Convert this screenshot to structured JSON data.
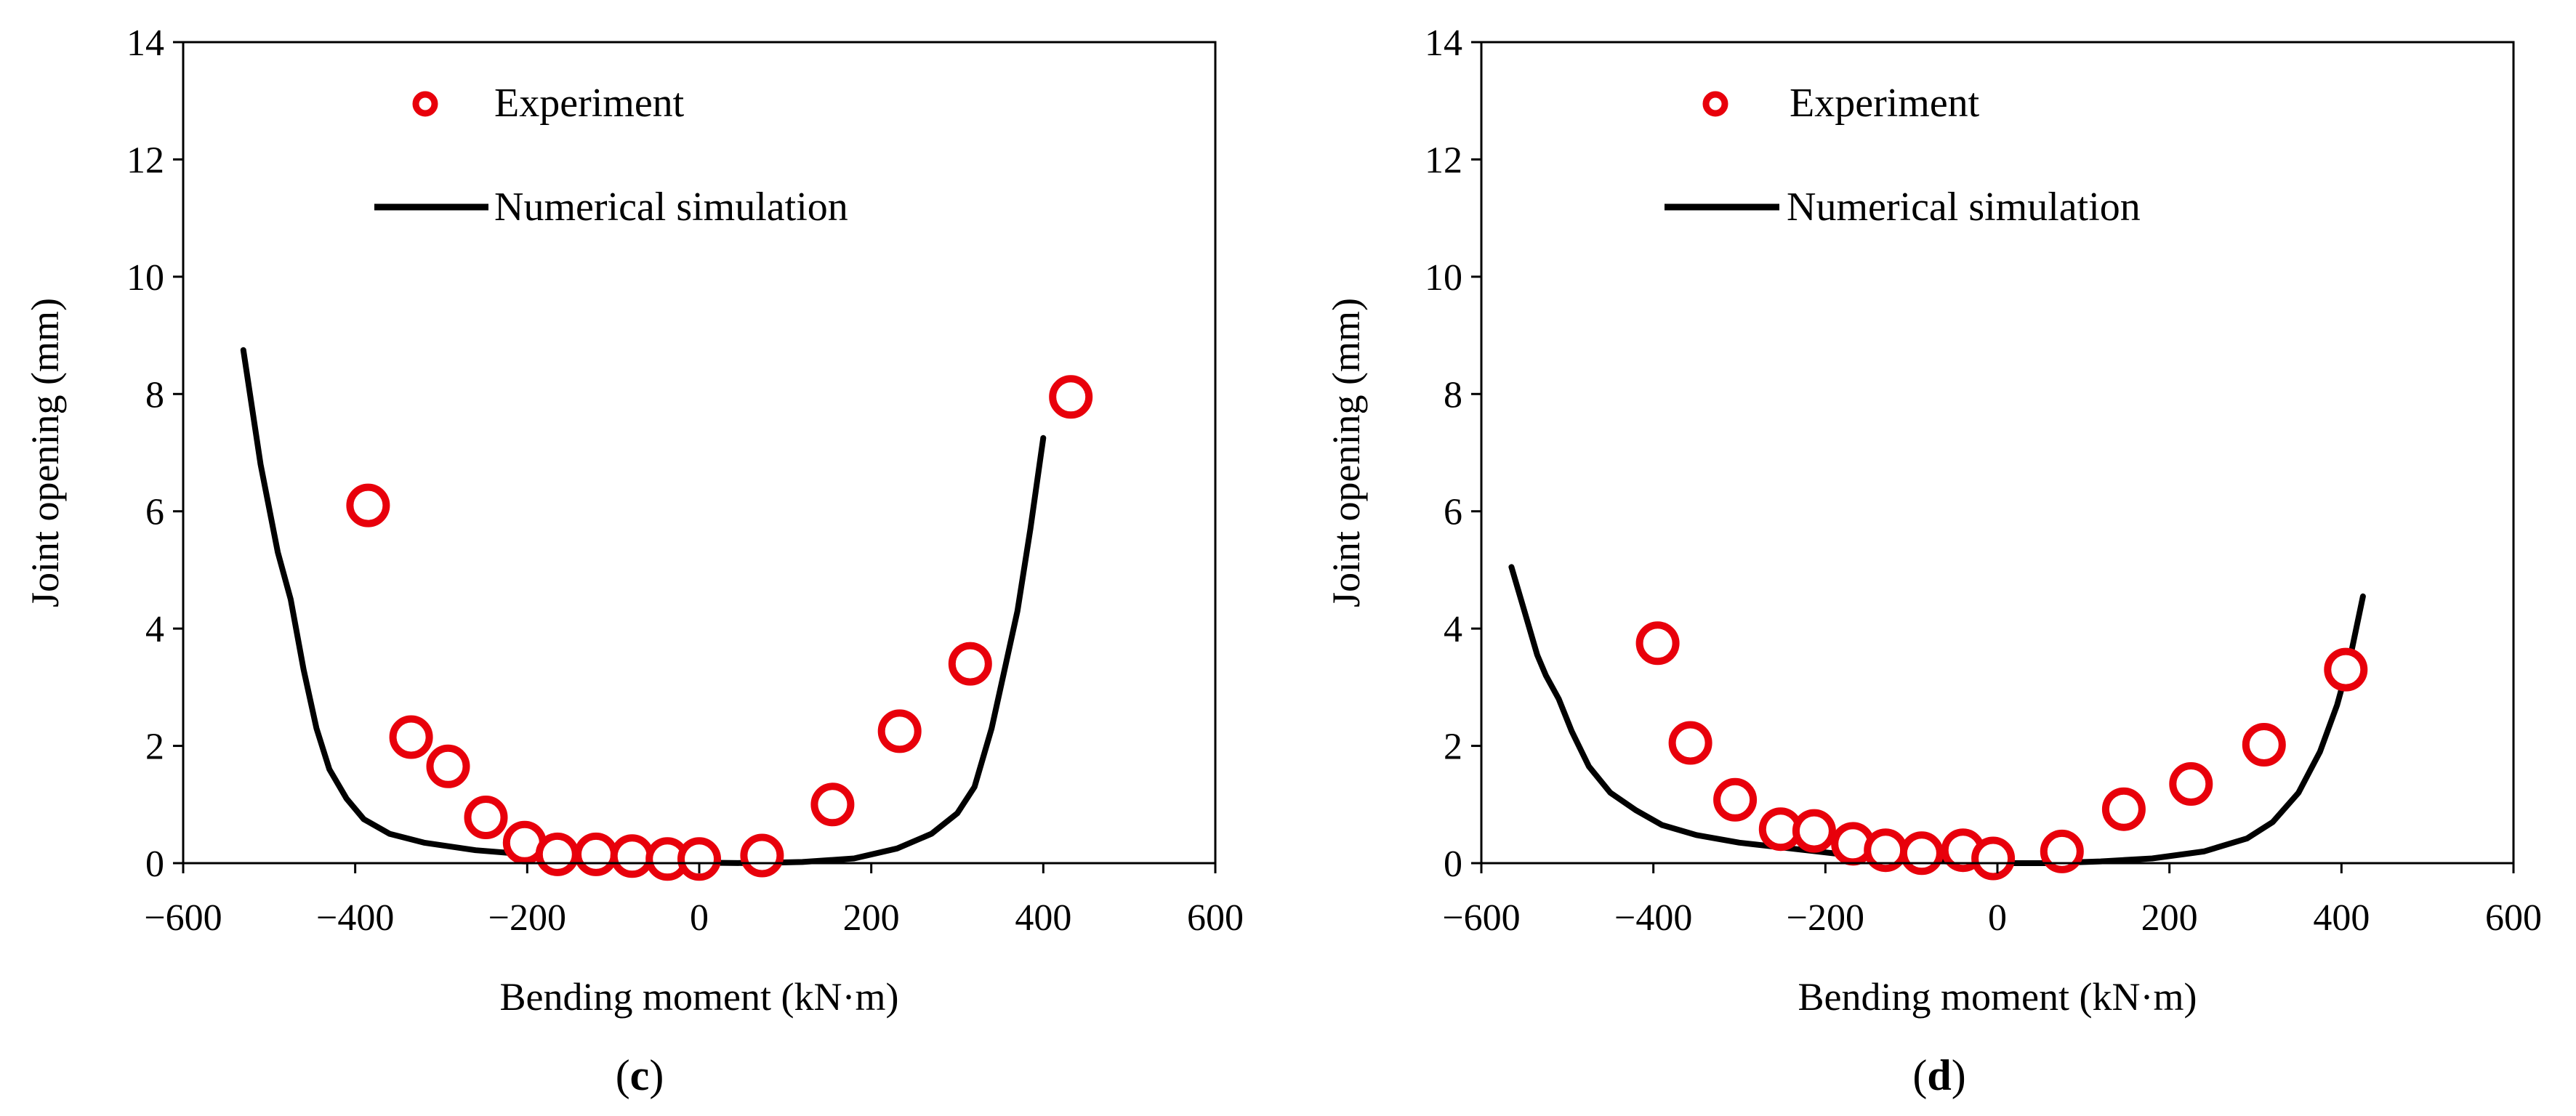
{
  "colors": {
    "experiment": "#e8000b",
    "simulation": "#000000",
    "axis": "#000000"
  },
  "chart_data": [
    {
      "panel_label_open": "(",
      "panel_label_letter": "c",
      "panel_label_close": ")",
      "type": "scatter",
      "xlabel": "Bending moment (kN·m)",
      "ylabel": "Joint opening (mm)",
      "xlim": [
        -600,
        600
      ],
      "ylim": [
        0,
        14
      ],
      "xticks": [
        -600,
        -400,
        -200,
        0,
        200,
        400,
        600
      ],
      "yticks": [
        0,
        2,
        4,
        6,
        8,
        10,
        12,
        14
      ],
      "xtick_labels": [
        "−600",
        "−400",
        "−200",
        "0",
        "200",
        "400",
        "600"
      ],
      "ytick_labels": [
        "0",
        "2",
        "4",
        "6",
        "8",
        "10",
        "12",
        "14"
      ],
      "grid": false,
      "legend_position": "top-left",
      "series": [
        {
          "name": "Experiment",
          "kind": "markers",
          "points": [
            [
              -385,
              6.1
            ],
            [
              -335,
              2.15
            ],
            [
              -292,
              1.65
            ],
            [
              -248,
              0.78
            ],
            [
              -203,
              0.35
            ],
            [
              -165,
              0.15
            ],
            [
              -120,
              0.15
            ],
            [
              -78,
              0.12
            ],
            [
              -37,
              0.07
            ],
            [
              0,
              0.07
            ],
            [
              73,
              0.13
            ],
            [
              155,
              1.0
            ],
            [
              233,
              2.25
            ],
            [
              315,
              3.4
            ],
            [
              432,
              7.95
            ]
          ]
        },
        {
          "name": "Numerical simulation",
          "kind": "line",
          "points": [
            [
              -530,
              8.75
            ],
            [
              -510,
              6.8
            ],
            [
              -490,
              5.3
            ],
            [
              -475,
              4.5
            ],
            [
              -460,
              3.3
            ],
            [
              -445,
              2.3
            ],
            [
              -430,
              1.6
            ],
            [
              -410,
              1.1
            ],
            [
              -390,
              0.75
            ],
            [
              -360,
              0.5
            ],
            [
              -320,
              0.35
            ],
            [
              -260,
              0.22
            ],
            [
              -200,
              0.15
            ],
            [
              -140,
              0.08
            ],
            [
              -80,
              0.04
            ],
            [
              0,
              0.01
            ],
            [
              60,
              0.0
            ],
            [
              120,
              0.02
            ],
            [
              180,
              0.08
            ],
            [
              230,
              0.25
            ],
            [
              270,
              0.5
            ],
            [
              300,
              0.85
            ],
            [
              320,
              1.3
            ],
            [
              340,
              2.3
            ],
            [
              355,
              3.3
            ],
            [
              370,
              4.3
            ],
            [
              385,
              5.7
            ],
            [
              400,
              7.25
            ]
          ]
        }
      ]
    },
    {
      "panel_label_open": "(",
      "panel_label_letter": "d",
      "panel_label_close": ")",
      "type": "scatter",
      "xlabel": "Bending moment (kN·m)",
      "ylabel": "Joint opening (mm)",
      "xlim": [
        -600,
        600
      ],
      "ylim": [
        0,
        14
      ],
      "xticks": [
        -600,
        -400,
        -200,
        0,
        200,
        400,
        600
      ],
      "yticks": [
        0,
        2,
        4,
        6,
        8,
        10,
        12,
        14
      ],
      "xtick_labels": [
        "−600",
        "−400",
        "−200",
        "0",
        "200",
        "400",
        "600"
      ],
      "ytick_labels": [
        "0",
        "2",
        "4",
        "6",
        "8",
        "10",
        "12",
        "14"
      ],
      "grid": false,
      "legend_position": "top-left",
      "series": [
        {
          "name": "Experiment",
          "kind": "markers",
          "points": [
            [
              -395,
              3.75
            ],
            [
              -357,
              2.05
            ],
            [
              -305,
              1.08
            ],
            [
              -252,
              0.58
            ],
            [
              -213,
              0.55
            ],
            [
              -168,
              0.33
            ],
            [
              -130,
              0.22
            ],
            [
              -88,
              0.17
            ],
            [
              -40,
              0.22
            ],
            [
              -5,
              0.08
            ],
            [
              75,
              0.2
            ],
            [
              147,
              0.92
            ],
            [
              225,
              1.35
            ],
            [
              310,
              2.02
            ],
            [
              405,
              3.3
            ]
          ]
        },
        {
          "name": "Numerical simulation",
          "kind": "line",
          "points": [
            [
              -565,
              5.05
            ],
            [
              -550,
              4.3
            ],
            [
              -535,
              3.55
            ],
            [
              -525,
              3.2
            ],
            [
              -510,
              2.8
            ],
            [
              -495,
              2.25
            ],
            [
              -475,
              1.65
            ],
            [
              -450,
              1.2
            ],
            [
              -420,
              0.9
            ],
            [
              -390,
              0.65
            ],
            [
              -350,
              0.48
            ],
            [
              -300,
              0.35
            ],
            [
              -240,
              0.25
            ],
            [
              -180,
              0.15
            ],
            [
              -120,
              0.08
            ],
            [
              -60,
              0.03
            ],
            [
              0,
              0.0
            ],
            [
              60,
              0.0
            ],
            [
              120,
              0.03
            ],
            [
              180,
              0.08
            ],
            [
              240,
              0.2
            ],
            [
              290,
              0.42
            ],
            [
              320,
              0.7
            ],
            [
              350,
              1.2
            ],
            [
              375,
              1.9
            ],
            [
              395,
              2.7
            ],
            [
              410,
              3.5
            ],
            [
              425,
              4.55
            ]
          ]
        }
      ]
    }
  ]
}
